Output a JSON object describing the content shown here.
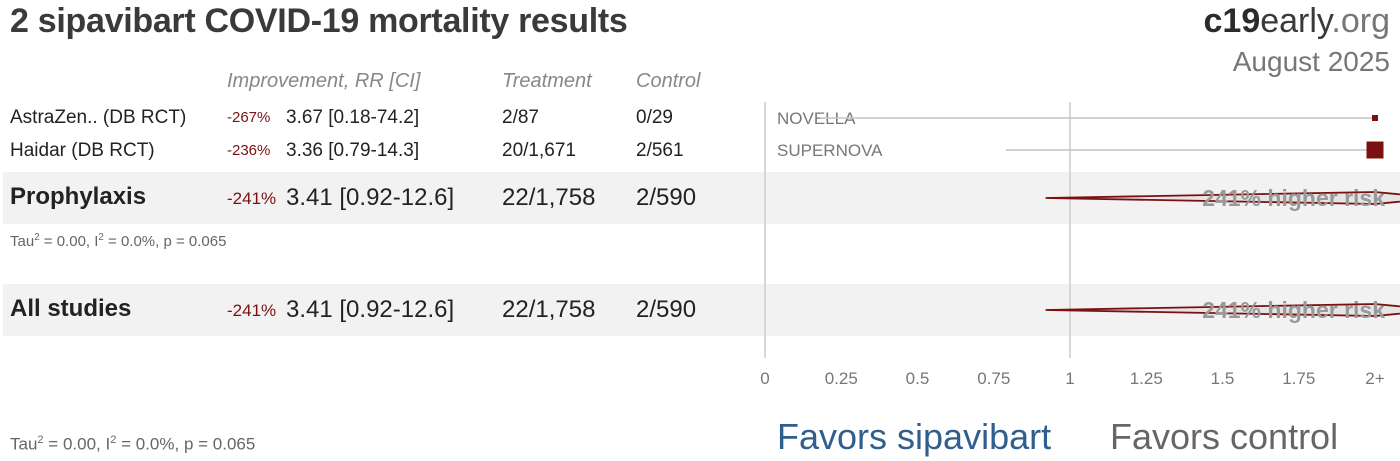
{
  "header": {
    "title": "2 sipavibart COVID-19 mortality results",
    "brand_bold": "c19",
    "brand_mid": "early",
    "brand_tld": ".org",
    "date": "August 2025"
  },
  "columns": {
    "improvement": "Improvement, RR [CI]",
    "treatment": "Treatment",
    "control": "Control"
  },
  "favors": {
    "left": "Favors sipavibart",
    "right": "Favors control",
    "left_color": "#2f5f8f",
    "right_color": "#666666"
  },
  "prophylaxis_stats": {
    "tau": "Tau",
    "tau_sup": "2",
    "tau_val": " = 0.00, I",
    "i_sup": "2",
    "rest": " = 0.0%, p = 0.065"
  },
  "overall_stats": {
    "tau": "Tau",
    "tau_sup": "2",
    "tau_val": " = 0.00, I",
    "i_sup": "2",
    "rest": " = 0.0%, p = 0.065"
  },
  "chart_data": {
    "type": "forest",
    "xlim": [
      0,
      2
    ],
    "x_ticks": [
      "0",
      "0.25",
      "0.5",
      "0.75",
      "1",
      "1.25",
      "1.5",
      "1.75",
      "2+"
    ],
    "reference_line": 1,
    "accent_color": "#7a1010",
    "studies": [
      {
        "name": "AstraZen.. (DB RCT)",
        "trial": "NOVELLA",
        "improvement": "-267%",
        "rr_text": "3.67 [0.18-74.2]",
        "treatment": "2/87",
        "control": "0/29",
        "rr": 3.67,
        "ci_low": 0.18,
        "ci_high": 74.2
      },
      {
        "name": "Haidar (DB RCT)",
        "trial": "SUPERNOVA",
        "improvement": "-236%",
        "rr_text": "3.36 [0.79-14.3]",
        "treatment": "20/1,671",
        "control": "2/561",
        "rr": 3.36,
        "ci_low": 0.79,
        "ci_high": 14.3
      }
    ],
    "subgroups": [
      {
        "name": "Prophylaxis",
        "improvement": "-241%",
        "rr_text": "3.41 [0.92-12.6]",
        "treatment": "22/1,758",
        "control": "2/590",
        "summary": "241% higher risk",
        "rr": 3.41,
        "ci_low": 0.92,
        "ci_high": 12.6
      }
    ],
    "overall": {
      "name": "All studies",
      "improvement": "-241%",
      "rr_text": "3.41 [0.92-12.6]",
      "treatment": "22/1,758",
      "control": "2/590",
      "summary": "241% higher risk",
      "rr": 3.41,
      "ci_low": 0.92,
      "ci_high": 12.6
    }
  }
}
